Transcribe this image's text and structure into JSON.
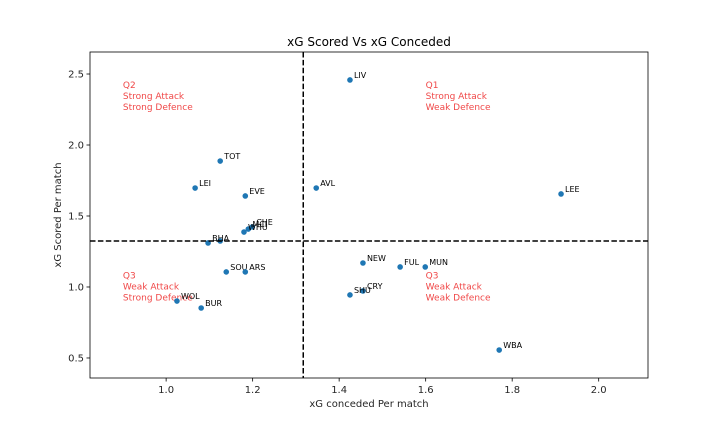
{
  "chart_data": {
    "type": "scatter",
    "title": "xG Scored Vs xG Conceded",
    "xlabel": "xG conceded Per match",
    "ylabel": "xG Scored Per match",
    "xlim": [
      0.824,
      2.114
    ],
    "ylim": [
      0.359,
      2.655
    ],
    "xticks": [
      1.0,
      1.2,
      1.4,
      1.6,
      1.8,
      2.0
    ],
    "xtick_labels": [
      "1.0",
      "1.2",
      "1.4",
      "1.6",
      "1.8",
      "2.0"
    ],
    "yticks": [
      0.5,
      1.0,
      1.5,
      2.0,
      2.5
    ],
    "ytick_labels": [
      "0.5",
      "1.0",
      "1.5",
      "2.0",
      "2.5"
    ],
    "grid": false,
    "point_color": "#1f77b4",
    "reference_lines": {
      "vertical_x": 1.317,
      "horizontal_y": 1.324,
      "style": "dashed",
      "color": "#000000"
    },
    "points": [
      {
        "label": "LIV",
        "x": 1.425,
        "y": 2.458
      },
      {
        "label": "TOT",
        "x": 1.125,
        "y": 1.887
      },
      {
        "label": "LEI",
        "x": 1.067,
        "y": 1.697
      },
      {
        "label": "EVE",
        "x": 1.183,
        "y": 1.641
      },
      {
        "label": "AVL",
        "x": 1.347,
        "y": 1.697
      },
      {
        "label": "LEE",
        "x": 1.913,
        "y": 1.655
      },
      {
        "label": "CHE",
        "x": 1.199,
        "y": 1.423
      },
      {
        "label": "MCI",
        "x": 1.19,
        "y": 1.408
      },
      {
        "label": "WHU",
        "x": 1.18,
        "y": 1.387
      },
      {
        "label": "",
        "x": 1.125,
        "y": 1.324
      },
      {
        "label": "BHA",
        "x": 1.097,
        "y": 1.31
      },
      {
        "label": "SOU",
        "x": 1.139,
        "y": 1.106
      },
      {
        "label": "ARS",
        "x": 1.183,
        "y": 1.106
      },
      {
        "label": "WOL",
        "x": 1.025,
        "y": 0.901
      },
      {
        "label": "BUR",
        "x": 1.081,
        "y": 0.852
      },
      {
        "label": "NEW",
        "x": 1.455,
        "y": 1.169
      },
      {
        "label": "FUL",
        "x": 1.541,
        "y": 1.141
      },
      {
        "label": "MUN",
        "x": 1.599,
        "y": 1.141
      },
      {
        "label": "CRY",
        "x": 1.455,
        "y": 0.972
      },
      {
        "label": "SHU",
        "x": 1.425,
        "y": 0.944
      },
      {
        "label": "WBA",
        "x": 1.77,
        "y": 0.556
      }
    ],
    "annotations": [
      {
        "lines": [
          "Q2",
          "Strong Attack",
          "Strong Defence"
        ],
        "x": 0.9,
        "y": 2.4,
        "color": "#f04848"
      },
      {
        "lines": [
          "Q1",
          "Strong Attack",
          "Weak Defence"
        ],
        "x": 1.6,
        "y": 2.4,
        "color": "#f04848"
      },
      {
        "lines": [
          "Q3",
          "Weak Attack",
          "Strong Defence"
        ],
        "x": 0.9,
        "y": 1.06,
        "color": "#f04848"
      },
      {
        "lines": [
          "Q3",
          "Weak Attack",
          "Weak Defence"
        ],
        "x": 1.6,
        "y": 1.06,
        "color": "#f04848"
      }
    ]
  }
}
